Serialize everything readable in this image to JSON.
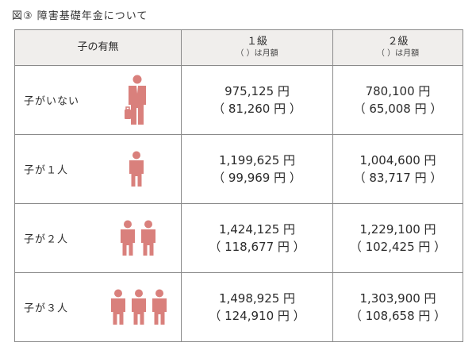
{
  "title": "図③ 障害基礎年金について",
  "header": {
    "col1": "子の有無",
    "col2_main": "１級",
    "col2_sub": "（ ）は月額",
    "col3_main": "２級",
    "col3_sub": "（ ）は月額"
  },
  "rows": [
    {
      "label": "子がいない",
      "icon": "businessman-icon",
      "grade1_annual": "975,125 円",
      "grade1_monthly": "（ 81,260 円 ）",
      "grade2_annual": "780,100 円",
      "grade2_monthly": "（ 65,008 円 ）"
    },
    {
      "label": "子が１人",
      "icon": "child-icon",
      "grade1_annual": "1,199,625 円",
      "grade1_monthly": "（ 99,969 円 ）",
      "grade2_annual": "1,004,600 円",
      "grade2_monthly": "（ 83,717 円 ）"
    },
    {
      "label": "子が２人",
      "icon": "child-icon",
      "grade1_annual": "1,424,125 円",
      "grade1_monthly": "（ 118,677 円 ）",
      "grade2_annual": "1,229,100 円",
      "grade2_monthly": "（ 102,425 円 ）"
    },
    {
      "label": "子が３人",
      "icon": "child-icon",
      "grade1_annual": "1,498,925 円",
      "grade1_monthly": "（ 124,910 円 ）",
      "grade2_annual": "1,303,900 円",
      "grade2_monthly": "（ 108,658 円 ）"
    }
  ],
  "colors": {
    "icon": "#d9807c",
    "header_bg": "#f0eeec",
    "border": "#8a8a8a"
  }
}
